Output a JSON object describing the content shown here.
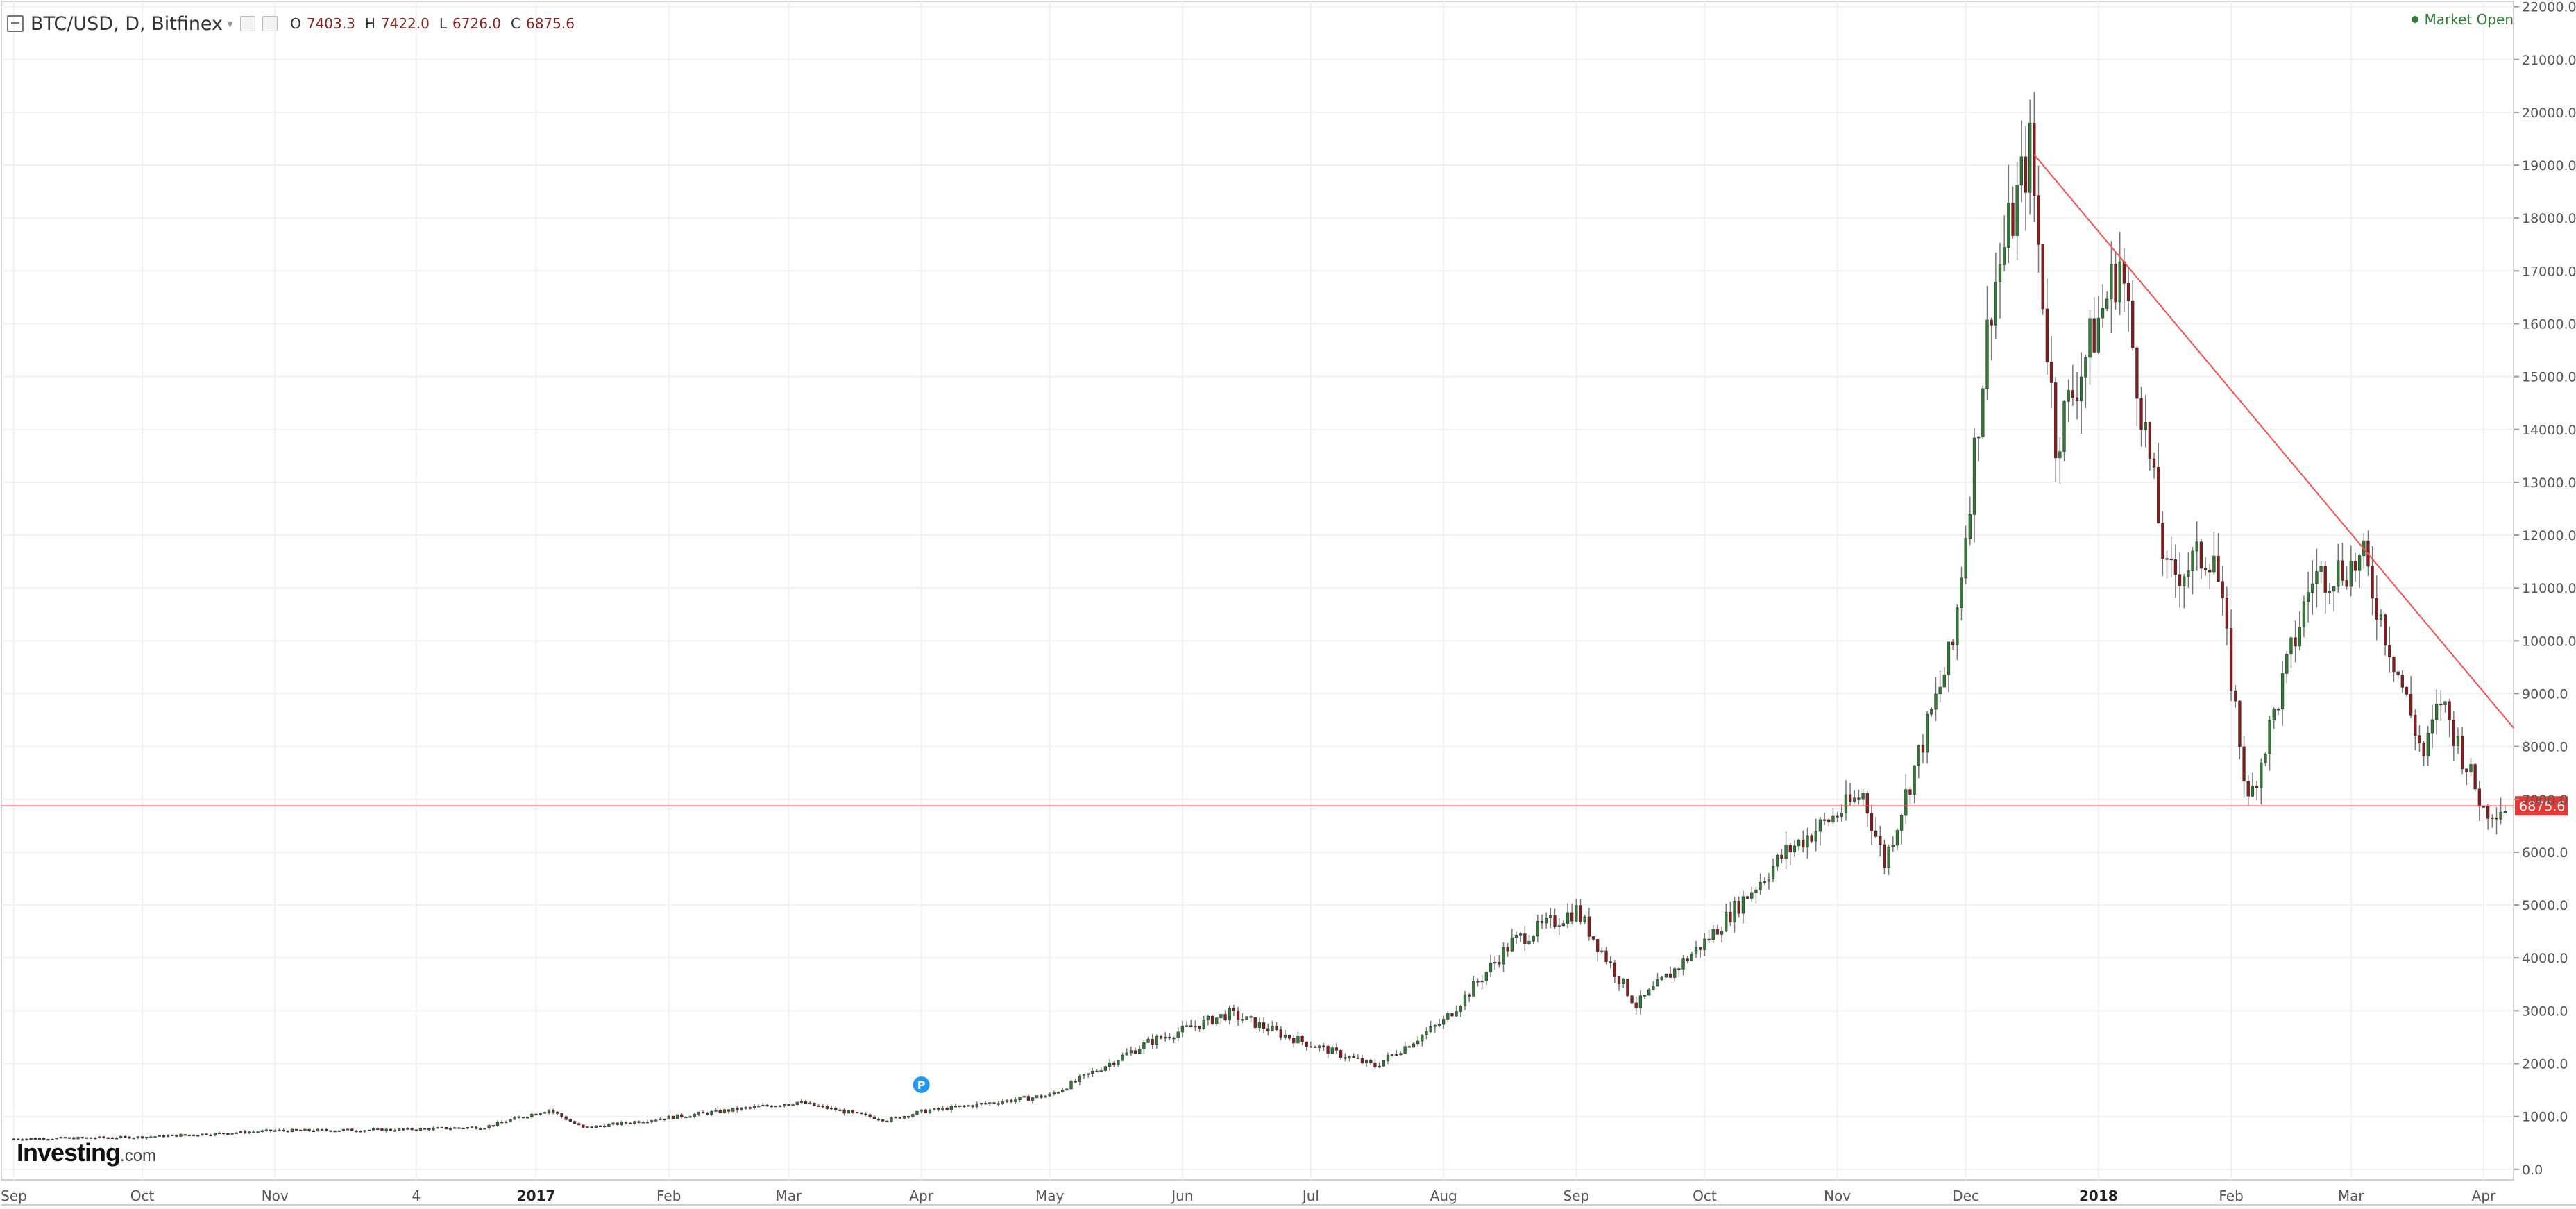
{
  "header": {
    "symbol": "BTC/USD, D, Bitfinex",
    "ohlc": [
      {
        "k": "O",
        "v": "7403.3"
      },
      {
        "k": "H",
        "v": "7422.0"
      },
      {
        "k": "L",
        "v": "6726.0"
      },
      {
        "k": "C",
        "v": "6875.6"
      }
    ]
  },
  "status": {
    "market": "Market Open"
  },
  "logo": {
    "word": "Investing",
    "suffix": ".com"
  },
  "colors": {
    "up": "#2e7d32",
    "down": "#8b1a1a",
    "wick": "#777777",
    "line": "#ff4d4d",
    "price_tag": "#e53935"
  },
  "chart_data": {
    "type": "candlestick",
    "title": "BTC/USD, D, Bitfinex",
    "ylim": [
      -200,
      22100
    ],
    "y_ticks": [
      "0.0",
      "1000.0",
      "2000.0",
      "3000.0",
      "4000.0",
      "5000.0",
      "6000.0",
      "7000.0",
      "8000.0",
      "9000.0",
      "10000.0",
      "11000.0",
      "12000.0",
      "13000.0",
      "14000.0",
      "15000.0",
      "16000.0",
      "17000.0",
      "18000.0",
      "19000.0",
      "20000.0",
      "21000.0",
      "22000.0"
    ],
    "x_labels": [
      {
        "label": "Sep",
        "date": "2016-09-01"
      },
      {
        "label": "Oct",
        "date": "2016-10-01"
      },
      {
        "label": "Nov",
        "date": "2016-11-01"
      },
      {
        "label": "4",
        "date": "2016-12-04"
      },
      {
        "label": "2017",
        "date": "2017-01-01"
      },
      {
        "label": "Feb",
        "date": "2017-02-01"
      },
      {
        "label": "Mar",
        "date": "2017-03-01"
      },
      {
        "label": "Apr",
        "date": "2017-04-01"
      },
      {
        "label": "May",
        "date": "2017-05-01"
      },
      {
        "label": "Jun",
        "date": "2017-06-01"
      },
      {
        "label": "Jul",
        "date": "2017-07-01"
      },
      {
        "label": "Aug",
        "date": "2017-08-01"
      },
      {
        "label": "Sep",
        "date": "2017-09-01"
      },
      {
        "label": "Oct",
        "date": "2017-10-01"
      },
      {
        "label": "Nov",
        "date": "2017-11-01"
      },
      {
        "label": "Dec",
        "date": "2017-12-01"
      },
      {
        "label": "2018",
        "date": "2018-01-01"
      },
      {
        "label": "Feb",
        "date": "2018-02-01"
      },
      {
        "label": "Mar",
        "date": "2018-03-01"
      },
      {
        "label": "Apr",
        "date": "2018-04-01"
      }
    ],
    "x_range": [
      "2016-09-01",
      "2018-04-07"
    ],
    "closes": [
      {
        "date": "2016-09-01",
        "close": 575
      },
      {
        "date": "2016-10-01",
        "close": 610
      },
      {
        "date": "2016-11-01",
        "close": 730
      },
      {
        "date": "2016-12-01",
        "close": 750
      },
      {
        "date": "2016-12-20",
        "close": 800
      },
      {
        "date": "2017-01-04",
        "close": 1130
      },
      {
        "date": "2017-01-12",
        "close": 780
      },
      {
        "date": "2017-02-01",
        "close": 980
      },
      {
        "date": "2017-03-03",
        "close": 1270
      },
      {
        "date": "2017-03-24",
        "close": 930
      },
      {
        "date": "2017-04-01",
        "close": 1090
      },
      {
        "date": "2017-05-01",
        "close": 1400
      },
      {
        "date": "2017-05-24",
        "close": 2400
      },
      {
        "date": "2017-06-12",
        "close": 2950
      },
      {
        "date": "2017-06-26",
        "close": 2500
      },
      {
        "date": "2017-07-16",
        "close": 1950
      },
      {
        "date": "2017-08-01",
        "close": 2800
      },
      {
        "date": "2017-08-17",
        "close": 4300
      },
      {
        "date": "2017-09-01",
        "close": 4900
      },
      {
        "date": "2017-09-15",
        "close": 3100
      },
      {
        "date": "2017-10-01",
        "close": 4300
      },
      {
        "date": "2017-10-20",
        "close": 6000
      },
      {
        "date": "2017-11-07",
        "close": 7100
      },
      {
        "date": "2017-11-12",
        "close": 5800
      },
      {
        "date": "2017-11-28",
        "close": 9900
      },
      {
        "date": "2017-12-07",
        "close": 16500
      },
      {
        "date": "2017-12-16",
        "close": 19300
      },
      {
        "date": "2017-12-22",
        "close": 13800
      },
      {
        "date": "2018-01-06",
        "close": 17200
      },
      {
        "date": "2018-01-17",
        "close": 11200
      },
      {
        "date": "2018-01-28",
        "close": 11700
      },
      {
        "date": "2018-02-05",
        "close": 6900
      },
      {
        "date": "2018-02-20",
        "close": 11200
      },
      {
        "date": "2018-03-04",
        "close": 11500
      },
      {
        "date": "2018-03-18",
        "close": 7800
      },
      {
        "date": "2018-03-22",
        "close": 8900
      },
      {
        "date": "2018-04-01",
        "close": 6800
      },
      {
        "date": "2018-04-06",
        "close": 6875.6
      }
    ],
    "trendline": [
      {
        "date": "2017-12-17",
        "value": 19200
      },
      {
        "date": "2018-04-08",
        "value": 8350
      }
    ],
    "horizontal_line": {
      "value": 6875.6,
      "label": "6875.6"
    },
    "marker": {
      "label": "P",
      "date": "2017-04-01",
      "value": 1600
    },
    "grid": true
  }
}
